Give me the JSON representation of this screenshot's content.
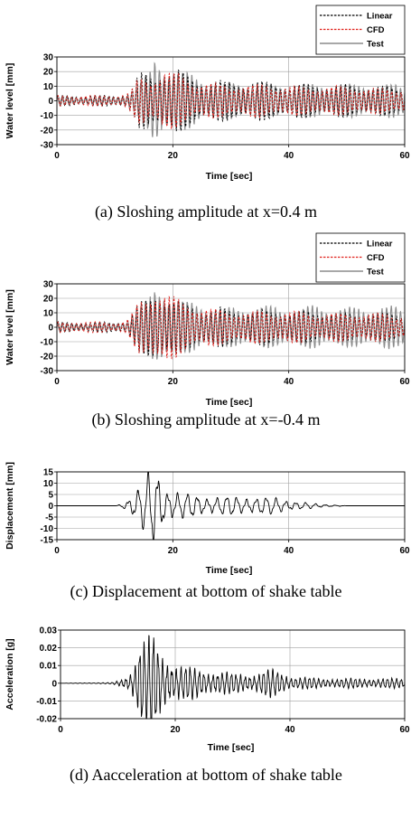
{
  "colors": {
    "linear": "#000000",
    "cfd": "#e0201b",
    "test": "#8c8c8c",
    "grid": "#a0a0a0"
  },
  "chart_data": [
    {
      "type": "line",
      "id": "a",
      "caption": "(a) Sloshing amplitude at x=0.4 m",
      "xlabel": "Time [sec]",
      "ylabel": "Water level [mm]",
      "xlim": [
        0,
        60
      ],
      "ylim": [
        -30,
        30
      ],
      "xticks": [
        0,
        20,
        40,
        60
      ],
      "yticks": [
        -30,
        -20,
        -10,
        0,
        10,
        20,
        30
      ],
      "grid": true,
      "legend": "top-right",
      "series": [
        {
          "name": "Linear",
          "style": "dashed",
          "color": "#000000"
        },
        {
          "name": "CFD",
          "style": "dashed",
          "color": "#e0201b"
        },
        {
          "name": "Test",
          "style": "solid",
          "color": "#8c8c8c"
        }
      ],
      "envelope_samples": {
        "t": [
          0,
          5,
          10,
          12,
          13,
          14,
          15,
          16,
          17,
          18,
          19,
          20,
          21,
          22,
          24,
          26,
          28,
          30,
          35,
          40,
          45,
          50,
          55,
          60
        ],
        "Linear": [
          3,
          3,
          3,
          4,
          8,
          14,
          16,
          14,
          15,
          20,
          19,
          17,
          18,
          15,
          13,
          12,
          11,
          11,
          11,
          10,
          9,
          9,
          8,
          8
        ],
        "CFD": [
          3,
          3,
          3,
          4,
          7,
          12,
          14,
          12,
          14,
          18,
          17,
          15,
          15,
          13,
          11,
          10,
          9,
          9,
          9,
          8,
          8,
          8,
          7,
          7
        ],
        "Test": [
          2,
          2,
          2,
          3,
          6,
          10,
          14,
          16,
          24,
          22,
          20,
          18,
          19,
          16,
          13,
          11,
          10,
          10,
          9,
          9,
          9,
          9,
          9,
          9
        ]
      },
      "period_sec": 0.8
    },
    {
      "type": "line",
      "id": "b",
      "caption": "(b) Sloshing amplitude at x=-0.4 m",
      "xlabel": "Time [sec]",
      "ylabel": "Water level [mm]",
      "xlim": [
        0,
        60
      ],
      "ylim": [
        -30,
        30
      ],
      "xticks": [
        0,
        20,
        40,
        60
      ],
      "yticks": [
        -30,
        -20,
        -10,
        0,
        10,
        20,
        30
      ],
      "grid": true,
      "legend": "top-right",
      "series": [
        {
          "name": "Linear",
          "style": "dashed",
          "color": "#000000"
        },
        {
          "name": "CFD",
          "style": "dashed",
          "color": "#e0201b"
        },
        {
          "name": "Test",
          "style": "solid",
          "color": "#8c8c8c"
        }
      ],
      "envelope_samples": {
        "t": [
          0,
          5,
          10,
          12,
          13,
          14,
          15,
          16,
          17,
          18,
          19,
          20,
          21,
          22,
          24,
          26,
          28,
          30,
          35,
          40,
          45,
          50,
          55,
          60
        ],
        "Linear": [
          3,
          3,
          3,
          4,
          8,
          13,
          15,
          17,
          22,
          20,
          18,
          16,
          15,
          13,
          12,
          11,
          11,
          10,
          10,
          9,
          9,
          8,
          8,
          8
        ],
        "CFD": [
          3,
          3,
          3,
          4,
          8,
          14,
          16,
          18,
          25,
          22,
          19,
          17,
          16,
          14,
          12,
          11,
          10,
          9,
          9,
          9,
          8,
          8,
          8,
          7
        ],
        "Test": [
          2,
          2,
          2,
          3,
          6,
          10,
          14,
          16,
          22,
          23,
          21,
          19,
          17,
          15,
          13,
          12,
          11,
          11,
          12,
          11,
          12,
          11,
          12,
          11
        ]
      },
      "period_sec": 0.8
    },
    {
      "type": "line",
      "id": "c",
      "caption": "(c) Displacement at bottom of shake table",
      "xlabel": "Time [sec]",
      "ylabel": "Displacement [mm]",
      "xlim": [
        0,
        60
      ],
      "ylim": [
        -15,
        15
      ],
      "xticks": [
        0,
        20,
        40,
        60
      ],
      "yticks": [
        -15,
        -10,
        -5,
        0,
        5,
        10,
        15
      ],
      "grid": true,
      "series": [
        {
          "name": "",
          "style": "solid",
          "color": "#000000"
        }
      ],
      "envelope_samples": {
        "t": [
          0,
          10,
          11,
          12,
          13,
          14,
          15,
          16,
          17,
          18,
          19,
          20,
          21,
          22,
          24,
          26,
          28,
          30,
          32,
          34,
          36,
          38,
          40,
          42,
          45,
          48,
          50,
          60
        ],
        "Displacement": [
          0,
          0,
          0.5,
          2,
          4,
          6,
          8,
          11,
          12.5,
          9,
          6,
          5,
          4.5,
          4,
          3.5,
          3,
          3,
          3,
          3,
          3,
          2.8,
          2.5,
          2,
          1.2,
          0.6,
          0.3,
          0,
          0
        ]
      },
      "period_sec": 1.7
    },
    {
      "type": "line",
      "id": "d",
      "caption": "(d) Aacceleration at bottom of shake table",
      "xlabel": "Time [sec]",
      "ylabel": "Acceleration [g]",
      "xlim": [
        0,
        60
      ],
      "ylim": [
        -0.02,
        0.03
      ],
      "xticks": [
        0,
        20,
        40,
        60
      ],
      "yticks": [
        -0.02,
        -0.01,
        0,
        0.01,
        0.02,
        0.03
      ],
      "grid": true,
      "series": [
        {
          "name": "",
          "style": "solid",
          "color": "#000000"
        }
      ],
      "envelope_samples": {
        "t": [
          0,
          9,
          10,
          11,
          12,
          13,
          14,
          15,
          16,
          17,
          18,
          19,
          20,
          22,
          24,
          26,
          28,
          30,
          32,
          34,
          36,
          38,
          40,
          45,
          50,
          55,
          60
        ],
        "Acceleration": [
          0,
          0.0003,
          0.001,
          0.002,
          0.004,
          0.01,
          0.019,
          0.017,
          0.022,
          0.015,
          0.012,
          0.01,
          0.008,
          0.007,
          0.006,
          0.005,
          0.005,
          0.004,
          0.004,
          0.004,
          0.006,
          0.005,
          0.003,
          0.002,
          0.002,
          0.002,
          0.002
        ]
      },
      "period_sec": 0.8
    }
  ]
}
